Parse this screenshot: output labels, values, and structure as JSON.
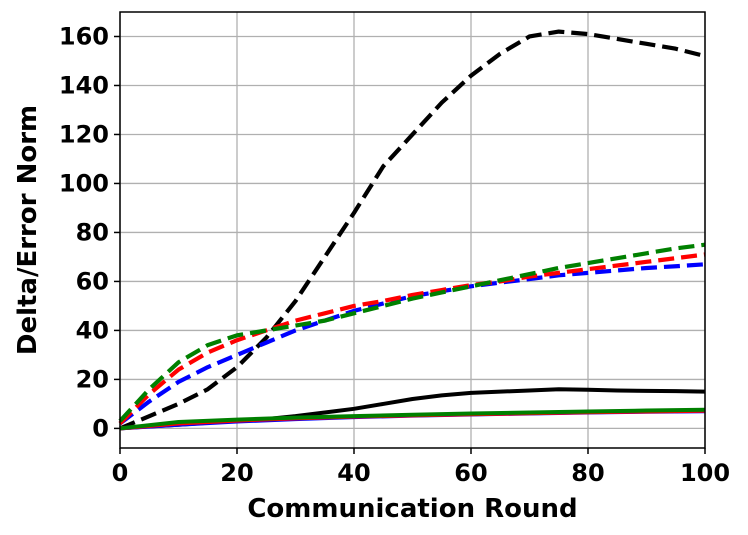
{
  "chart_data": {
    "type": "line",
    "title": "",
    "xlabel": "Communication Round",
    "ylabel": "Delta/Error Norm",
    "xlim": [
      0,
      100
    ],
    "ylim": [
      -8,
      170
    ],
    "xticks": [
      0,
      20,
      40,
      60,
      80,
      100
    ],
    "yticks": [
      0,
      20,
      40,
      60,
      80,
      100,
      120,
      140,
      160
    ],
    "grid": true,
    "legend": "none",
    "series": [
      {
        "color": "#000000",
        "style": "dashed",
        "x": [
          0,
          5,
          10,
          15,
          20,
          25,
          30,
          35,
          40,
          45,
          50,
          55,
          60,
          65,
          70,
          75,
          80,
          85,
          90,
          95,
          100
        ],
        "values": [
          0,
          5,
          10,
          16,
          25,
          37,
          52,
          70,
          88,
          107,
          120,
          133,
          144,
          153,
          160,
          162,
          161,
          159,
          157,
          155,
          152
        ]
      },
      {
        "color": "#0000ff",
        "style": "dashed",
        "x": [
          0,
          5,
          10,
          15,
          20,
          25,
          30,
          35,
          40,
          45,
          50,
          55,
          60,
          65,
          70,
          75,
          80,
          85,
          90,
          95,
          100
        ],
        "values": [
          2,
          11,
          19,
          25,
          30,
          35,
          40,
          44,
          48,
          51,
          54,
          56,
          58,
          59.5,
          61,
          62.5,
          63.5,
          64.5,
          65.5,
          66.2,
          67
        ]
      },
      {
        "color": "#ff0000",
        "style": "dashed",
        "x": [
          0,
          5,
          10,
          15,
          20,
          25,
          30,
          35,
          40,
          45,
          50,
          55,
          60,
          65,
          70,
          75,
          80,
          85,
          90,
          95,
          100
        ],
        "values": [
          2,
          14,
          24,
          31,
          36,
          40,
          44,
          47,
          50,
          52,
          54.5,
          56.5,
          58.5,
          60,
          62,
          63.5,
          65,
          66.5,
          68,
          69.5,
          71
        ]
      },
      {
        "color": "#008000",
        "style": "dashed",
        "x": [
          0,
          5,
          10,
          15,
          20,
          25,
          30,
          35,
          40,
          45,
          50,
          55,
          60,
          65,
          70,
          75,
          80,
          85,
          90,
          95,
          100
        ],
        "values": [
          3,
          16,
          27,
          34,
          38,
          40,
          42,
          44,
          47,
          50,
          53,
          55.5,
          58,
          60.5,
          63,
          65.5,
          67.5,
          69.5,
          71.5,
          73.5,
          75
        ]
      },
      {
        "color": "#000000",
        "style": "solid",
        "x": [
          0,
          5,
          10,
          15,
          20,
          25,
          30,
          35,
          40,
          45,
          50,
          55,
          60,
          65,
          70,
          75,
          80,
          85,
          90,
          95,
          100
        ],
        "values": [
          0,
          0.8,
          1.5,
          2.3,
          3.0,
          3.8,
          5.0,
          6.5,
          8.0,
          10.0,
          12.0,
          13.5,
          14.5,
          15.0,
          15.5,
          16.0,
          15.8,
          15.5,
          15.3,
          15.2,
          15.0
        ]
      },
      {
        "color": "#0000ff",
        "style": "solid",
        "x": [
          0,
          10,
          20,
          30,
          40,
          50,
          60,
          70,
          80,
          90,
          100
        ],
        "values": [
          0,
          1.5,
          2.8,
          3.8,
          4.6,
          5.2,
          5.7,
          6.1,
          6.5,
          6.8,
          7.0
        ]
      },
      {
        "color": "#ff0000",
        "style": "solid",
        "x": [
          0,
          10,
          20,
          30,
          40,
          50,
          60,
          70,
          80,
          90,
          100
        ],
        "values": [
          0,
          2.0,
          3.2,
          4.1,
          4.8,
          5.3,
          5.8,
          6.2,
          6.6,
          6.9,
          7.2
        ]
      },
      {
        "color": "#008000",
        "style": "solid",
        "x": [
          0,
          10,
          20,
          30,
          40,
          50,
          60,
          70,
          80,
          90,
          100
        ],
        "values": [
          0,
          2.6,
          3.6,
          4.4,
          5.0,
          5.6,
          6.1,
          6.5,
          6.9,
          7.3,
          7.6
        ]
      }
    ]
  }
}
